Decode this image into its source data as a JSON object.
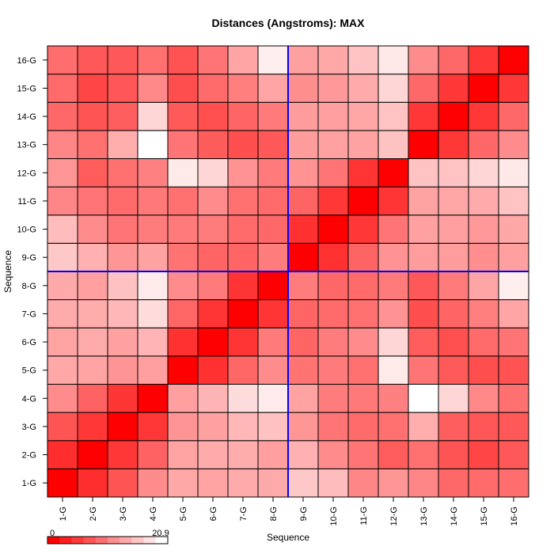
{
  "chart_data": {
    "type": "heatmap",
    "title": "Distances (Angstroms):  MAX",
    "xlabel": "Sequence",
    "ylabel": "Sequence",
    "categories": [
      "1-G",
      "2-G",
      "3-G",
      "4-G",
      "5-G",
      "6-G",
      "7-G",
      "8-G",
      "9-G",
      "10-G",
      "11-G",
      "12-G",
      "13-G",
      "14-G",
      "15-G",
      "16-G"
    ],
    "value_range": [
      0,
      20.9
    ],
    "color_low": "#ff0000",
    "color_high": "#ffffff",
    "colorbar": {
      "min_label": "0",
      "max_label": "20.9",
      "steps": 10
    },
    "divider_color": "#0000ff",
    "divider_after_index": 8,
    "grid": true,
    "matrix": [
      [
        0.0,
        3.8,
        6.9,
        11.5,
        13.8,
        13.4,
        14.0,
        13.9,
        16.4,
        15.4,
        11.0,
        12.3,
        11.0,
        8.5,
        8.7,
        9.0
      ],
      [
        3.8,
        0.0,
        4.5,
        8.0,
        13.4,
        14.0,
        14.1,
        13.0,
        14.5,
        11.5,
        9.5,
        7.5,
        9.2,
        6.9,
        5.7,
        7.2
      ],
      [
        6.9,
        4.5,
        0.0,
        4.4,
        12.1,
        13.2,
        15.0,
        15.8,
        12.3,
        9.5,
        8.8,
        9.3,
        14.2,
        7.7,
        7.1,
        7.2
      ],
      [
        11.5,
        8.0,
        4.4,
        0.0,
        13.0,
        14.8,
        18.0,
        19.3,
        13.3,
        10.2,
        9.9,
        10.5,
        20.9,
        17.5,
        11.2,
        9.2
      ],
      [
        13.8,
        13.4,
        12.1,
        13.0,
        0.0,
        4.0,
        8.4,
        11.5,
        9.4,
        10.0,
        9.3,
        19.2,
        9.5,
        7.4,
        6.4,
        6.7
      ],
      [
        13.4,
        14.0,
        13.2,
        14.8,
        4.0,
        0.0,
        4.3,
        10.0,
        8.3,
        10.2,
        11.5,
        17.5,
        7.5,
        6.5,
        8.8,
        9.5
      ],
      [
        14.0,
        14.1,
        15.0,
        18.0,
        8.4,
        4.3,
        0.0,
        4.3,
        8.3,
        8.8,
        9.2,
        12.0,
        6.5,
        8.3,
        10.4,
        13.5
      ],
      [
        13.9,
        13.0,
        15.8,
        19.3,
        11.5,
        10.0,
        4.3,
        0.0,
        10.2,
        8.5,
        8.7,
        10.0,
        7.2,
        10.0,
        13.5,
        19.5
      ],
      [
        16.4,
        14.5,
        12.3,
        13.3,
        9.4,
        8.3,
        8.3,
        10.2,
        0.0,
        4.0,
        8.2,
        12.0,
        12.8,
        12.8,
        11.7,
        13.1
      ],
      [
        15.4,
        11.5,
        9.5,
        10.2,
        10.0,
        10.2,
        8.8,
        8.5,
        4.0,
        0.0,
        4.5,
        9.5,
        13.2,
        13.0,
        12.5,
        13.8
      ],
      [
        11.0,
        9.5,
        8.8,
        9.9,
        9.3,
        11.5,
        9.2,
        8.7,
        8.2,
        4.5,
        0.0,
        4.3,
        13.3,
        13.6,
        14.0,
        16.0
      ],
      [
        12.3,
        7.5,
        9.3,
        10.5,
        19.2,
        17.5,
        12.0,
        10.0,
        12.0,
        9.5,
        4.3,
        0.0,
        16.0,
        16.0,
        17.5,
        19.0
      ],
      [
        11.0,
        9.2,
        14.2,
        20.9,
        9.5,
        7.5,
        6.5,
        7.2,
        12.8,
        13.2,
        13.3,
        16.0,
        0.0,
        4.5,
        8.5,
        11.5
      ],
      [
        8.5,
        6.9,
        7.7,
        17.5,
        7.4,
        6.5,
        8.3,
        10.0,
        12.8,
        13.0,
        13.6,
        16.0,
        4.5,
        0.0,
        4.5,
        8.5
      ],
      [
        8.7,
        5.7,
        7.1,
        11.2,
        6.4,
        8.8,
        10.4,
        13.5,
        11.7,
        12.5,
        14.0,
        17.5,
        8.5,
        4.5,
        0.0,
        4.5
      ],
      [
        9.0,
        7.2,
        7.2,
        9.2,
        6.7,
        9.5,
        13.5,
        19.5,
        13.1,
        13.8,
        16.0,
        19.0,
        11.5,
        8.5,
        4.5,
        0.0
      ]
    ]
  }
}
